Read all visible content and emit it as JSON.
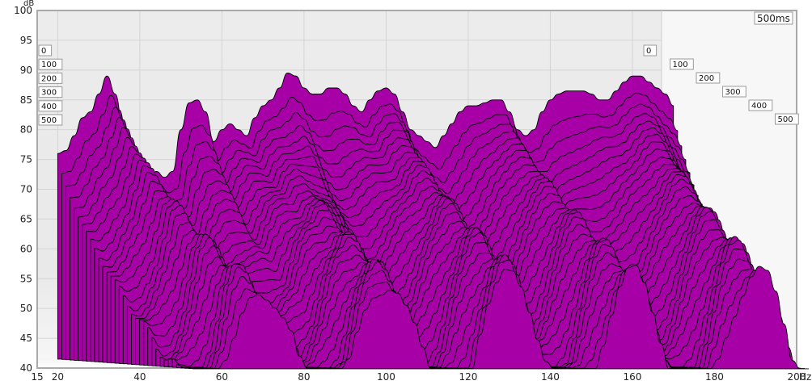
{
  "chart_data": {
    "type": "area",
    "chart_kind": "waterfall",
    "xlabel": "Hz",
    "ylabel": "dB",
    "xlim": [
      15,
      200
    ],
    "ylim": [
      40,
      100
    ],
    "x_ticks": [
      "15",
      "20",
      "40",
      "60",
      "80",
      "100",
      "120",
      "140",
      "160",
      "180",
      "200"
    ],
    "x_tick_values": [
      15,
      20,
      40,
      60,
      80,
      100,
      120,
      140,
      160,
      180,
      200
    ],
    "y_ticks": [
      "40",
      "45",
      "50",
      "55",
      "60",
      "65",
      "70",
      "75",
      "80",
      "85",
      "90",
      "95",
      "100"
    ],
    "y_tick_values": [
      40,
      45,
      50,
      55,
      60,
      65,
      70,
      75,
      80,
      85,
      90,
      95,
      100
    ],
    "depth_label": "500ms",
    "depth_ticks_left": [
      "0",
      "100",
      "200",
      "300",
      "400",
      "500"
    ],
    "depth_ticks_right": [
      "0",
      "100",
      "200",
      "300",
      "400",
      "500"
    ],
    "depth_range_ms": [
      0,
      500
    ],
    "slice_count": 34,
    "fill_color": "#a600a6",
    "line_color": "#000000",
    "series": [
      {
        "time_ms": 0,
        "x": [
          20,
          22,
          24,
          26,
          28,
          30,
          32,
          34,
          36,
          38,
          40,
          42,
          44,
          46,
          48,
          50,
          52,
          54,
          56,
          58,
          60,
          62,
          64,
          66,
          68,
          70,
          72,
          74,
          76,
          78,
          80,
          82,
          84,
          86,
          88,
          90,
          92,
          94,
          96,
          98,
          100,
          102,
          104,
          106,
          108,
          110,
          112,
          114,
          116,
          118,
          120,
          122,
          124,
          126,
          128,
          130,
          132,
          134,
          136,
          138,
          140,
          142,
          144,
          146,
          148,
          150,
          152,
          154,
          156,
          158,
          160,
          162,
          164,
          166,
          168,
          170
        ],
        "y": [
          76,
          76.5,
          79,
          82,
          83,
          86,
          89,
          86,
          80,
          74,
          70,
          69,
          73,
          72,
          73,
          80,
          84.5,
          85,
          83,
          78,
          80,
          81,
          80,
          79,
          82,
          84,
          85,
          87,
          89.5,
          89,
          87,
          86,
          86,
          87,
          87,
          86,
          84,
          83,
          85,
          86.5,
          87,
          86,
          83,
          80,
          79,
          78,
          77,
          79,
          81,
          83,
          84,
          84,
          84.5,
          85,
          85,
          83,
          80,
          79,
          80,
          83,
          85,
          86,
          86.5,
          86.5,
          86.5,
          86,
          85,
          85,
          86.5,
          88,
          89,
          89,
          88,
          87,
          86,
          84
        ]
      }
    ]
  }
}
